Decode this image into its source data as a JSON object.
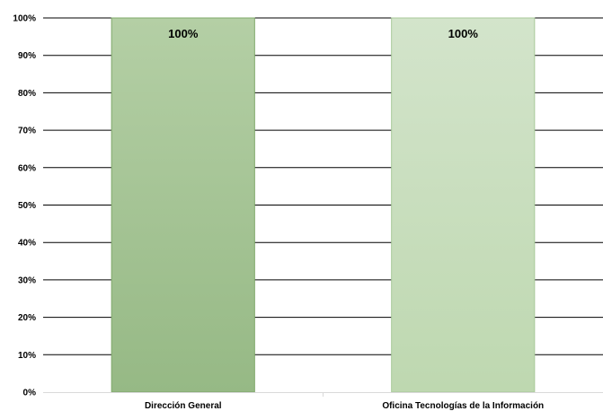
{
  "chart_data": {
    "type": "bar",
    "title": "",
    "xlabel": "",
    "ylabel": "",
    "categories": [
      "Dirección General",
      "Oficina Tecnologías de la Información"
    ],
    "values": [
      100,
      100
    ],
    "data_labels": [
      "100%",
      "100%"
    ],
    "ylim": [
      0,
      100
    ],
    "y_ticks": [
      0,
      10,
      20,
      30,
      40,
      50,
      60,
      70,
      80,
      90,
      100
    ],
    "y_tick_labels": [
      "0%",
      "10%",
      "20%",
      "30%",
      "40%",
      "50%",
      "60%",
      "70%",
      "80%",
      "90%",
      "100%"
    ],
    "grid": true,
    "legend": "none",
    "colors": {
      "bar_1_top": "#b4cfa5",
      "bar_1_bottom": "#96b985",
      "bar_1_border": "#7fa86a",
      "bar_2_top": "#d3e4cb",
      "bar_2_bottom": "#bed8b0",
      "bar_2_border": "#a8c99a",
      "gridline": "#000000"
    }
  }
}
